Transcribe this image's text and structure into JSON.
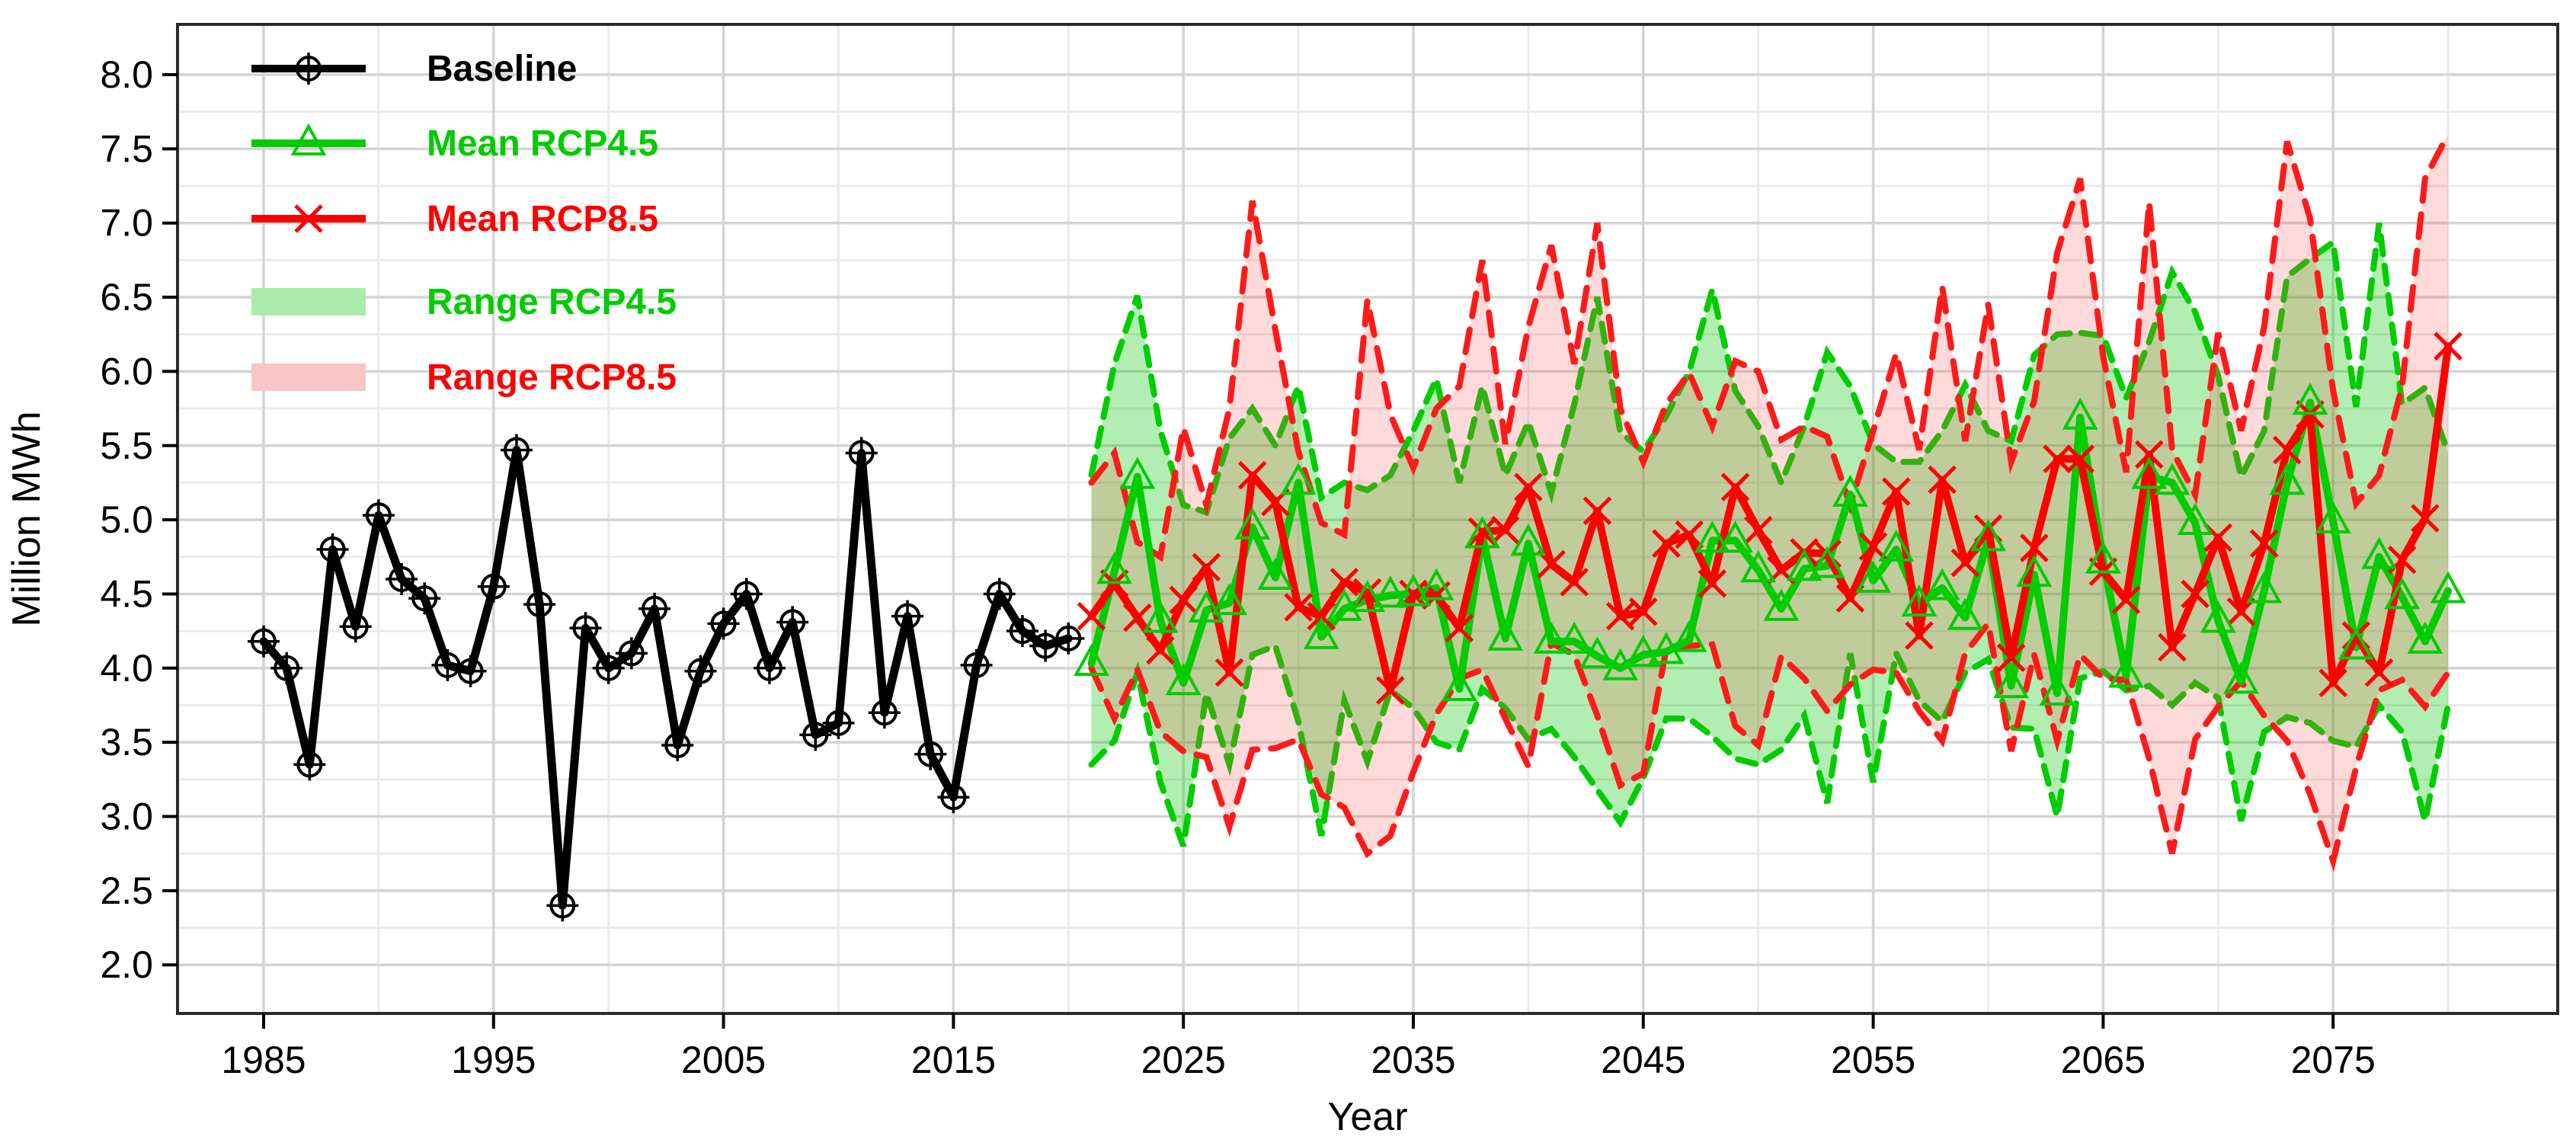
{
  "chart_data": {
    "type": "line",
    "title": "",
    "xlabel": "Year",
    "ylabel": "Million MWh",
    "axes": {
      "y_major_ticks": [
        2.0,
        2.5,
        3.0,
        3.5,
        4.0,
        4.5,
        5.0,
        5.5,
        6.0,
        6.5,
        7.0,
        7.5,
        8.0
      ],
      "y_tick_labels": [
        "2.0",
        "2.5",
        "3.0",
        "3.5",
        "4.0",
        "4.5",
        "5.0",
        "5.5",
        "6.0",
        "6.5",
        "7.0",
        "7.5",
        "8.0"
      ],
      "y_minor_ticks": [
        2.25,
        2.75,
        3.25,
        3.75,
        4.25,
        4.75,
        5.25,
        5.75,
        6.25,
        6.75,
        7.25,
        7.75
      ],
      "x_major_ticks": [
        1985,
        1995,
        2005,
        2015,
        2025,
        2035,
        2045,
        2055,
        2065,
        2075
      ],
      "x_minor_ticks": [
        1990,
        2000,
        2010,
        2020,
        2030,
        2040,
        2050,
        2060,
        2070,
        2080
      ],
      "ylim": [
        1.67,
        8.33
      ],
      "xlim": [
        1981.3,
        2084.8
      ],
      "grid": true
    },
    "legend": {
      "position": "top-left-inside",
      "entries": [
        {
          "label": "Baseline",
          "color": "#000000",
          "marker": "circle-plus",
          "kind": "line"
        },
        {
          "label": "Mean RCP4.5",
          "color": "#00CC00",
          "marker": "triangle",
          "kind": "line"
        },
        {
          "label": "Mean RCP8.5",
          "color": "#FF0000",
          "marker": "x",
          "kind": "line"
        },
        {
          "label": "Range RCP4.5",
          "color": "#ABEBAB",
          "marker": "none",
          "kind": "band"
        },
        {
          "label": "Range RCP8.5",
          "color": "#F8C5C5",
          "marker": "none",
          "kind": "band"
        }
      ]
    },
    "series": [
      {
        "name": "Baseline",
        "color": "#000000",
        "marker": "circle-plus",
        "line_width": 11,
        "start_year": 1985,
        "values": [
          4.18,
          4.0,
          3.35,
          4.8,
          4.28,
          5.03,
          4.6,
          4.47,
          4.02,
          3.98,
          4.55,
          5.47,
          4.43,
          2.4,
          4.27,
          4.0,
          4.1,
          4.4,
          3.48,
          3.98,
          4.3,
          4.5,
          4.0,
          4.31,
          3.55,
          3.63,
          5.45,
          3.7,
          4.35,
          3.42,
          3.13,
          4.02,
          4.5,
          4.25,
          4.15,
          4.2
        ]
      },
      {
        "name": "Mean RCP4.5",
        "color": "#00CC00",
        "marker": "triangle",
        "line_width": 10,
        "start_year": 2021,
        "values": [
          4.03,
          4.65,
          5.29,
          4.32,
          3.9,
          4.39,
          4.44,
          4.95,
          4.61,
          5.25,
          4.21,
          4.4,
          4.46,
          4.49,
          4.5,
          4.54,
          3.86,
          4.89,
          4.2,
          4.84,
          4.18,
          4.18,
          4.08,
          4.0,
          4.09,
          4.11,
          4.19,
          4.86,
          4.86,
          4.66,
          4.4,
          4.67,
          4.69,
          5.17,
          4.59,
          4.8,
          4.43,
          4.54,
          4.34,
          4.87,
          3.88,
          4.63,
          3.83,
          5.69,
          4.72,
          3.95,
          5.29,
          5.25,
          4.98,
          4.32,
          3.91,
          4.52,
          5.25,
          5.79,
          4.99,
          4.14,
          4.75,
          4.48,
          4.18,
          4.52
        ]
      },
      {
        "name": "Mean RCP8.5",
        "color": "#FF0000",
        "marker": "x",
        "line_width": 10,
        "start_year": 2021,
        "values": [
          4.35,
          4.57,
          4.34,
          4.12,
          4.46,
          4.68,
          3.97,
          5.3,
          5.12,
          4.41,
          4.35,
          4.58,
          4.51,
          3.85,
          4.5,
          4.49,
          4.27,
          4.92,
          4.93,
          5.22,
          4.7,
          4.58,
          5.06,
          4.35,
          4.38,
          4.84,
          4.9,
          4.57,
          5.22,
          4.93,
          4.66,
          4.78,
          4.77,
          4.47,
          4.82,
          5.19,
          4.22,
          5.27,
          4.71,
          4.94,
          4.07,
          4.81,
          5.41,
          5.41,
          4.65,
          4.46,
          5.44,
          4.14,
          4.5,
          4.88,
          4.38,
          4.84,
          5.47,
          5.71,
          3.9,
          4.22,
          3.97,
          4.73,
          5.01,
          6.17
        ]
      }
    ],
    "bands": [
      {
        "name": "Range RCP4.5",
        "edge_color": "#00CC00",
        "fill": "rgba(0,200,0,0.30)",
        "dash": "24 15",
        "edge_width": 8,
        "start_year": 2021,
        "upper": [
          5.3,
          6.05,
          6.51,
          5.6,
          5.1,
          5.05,
          5.55,
          5.75,
          5.5,
          5.9,
          5.15,
          5.25,
          5.2,
          5.3,
          5.6,
          5.95,
          5.25,
          5.9,
          5.3,
          5.66,
          5.18,
          5.78,
          6.5,
          5.59,
          5.46,
          5.7,
          6.0,
          6.55,
          5.87,
          5.63,
          5.25,
          5.63,
          6.13,
          5.9,
          5.51,
          5.39,
          5.39,
          5.6,
          5.91,
          5.6,
          5.53,
          6.11,
          6.25,
          6.26,
          6.24,
          5.82,
          6.2,
          6.67,
          6.4,
          5.97,
          5.29,
          5.6,
          6.64,
          6.76,
          6.87,
          5.76,
          7.0,
          5.78,
          5.89,
          5.45
        ],
        "lower": [
          3.35,
          3.51,
          3.97,
          3.23,
          2.8,
          3.83,
          3.35,
          4.09,
          4.15,
          3.64,
          2.87,
          3.78,
          3.37,
          3.85,
          3.73,
          3.5,
          3.45,
          3.86,
          3.73,
          3.52,
          3.59,
          3.4,
          3.18,
          2.96,
          3.26,
          3.66,
          3.66,
          3.54,
          3.39,
          3.35,
          3.45,
          3.68,
          3.09,
          4.1,
          3.23,
          4.1,
          3.78,
          3.64,
          3.97,
          4.06,
          3.6,
          3.59,
          3.0,
          3.93,
          3.98,
          3.85,
          3.88,
          3.75,
          3.9,
          3.8,
          2.97,
          3.57,
          3.67,
          3.63,
          3.51,
          3.47,
          3.75,
          3.57,
          2.97,
          3.75
        ]
      },
      {
        "name": "Range RCP8.5",
        "edge_color": "#FF1A1A",
        "fill": "rgba(255,70,70,0.20)",
        "dash": "30 18",
        "edge_width": 8,
        "start_year": 2021,
        "upper": [
          5.25,
          5.45,
          4.85,
          4.75,
          5.62,
          5.1,
          5.75,
          7.15,
          6.28,
          5.46,
          4.98,
          4.9,
          6.48,
          5.71,
          5.35,
          5.75,
          5.9,
          6.75,
          5.51,
          6.3,
          6.85,
          6.05,
          7.0,
          5.75,
          5.39,
          5.78,
          5.99,
          5.63,
          6.07,
          6.0,
          5.54,
          5.63,
          5.56,
          5.1,
          5.6,
          6.12,
          5.47,
          6.57,
          5.53,
          6.45,
          5.39,
          5.8,
          6.8,
          7.3,
          6.1,
          5.32,
          7.14,
          5.47,
          5.17,
          6.26,
          5.6,
          6.3,
          7.55,
          7.03,
          5.87,
          5.11,
          5.3,
          5.9,
          7.3,
          7.6
        ],
        "lower": [
          4.0,
          3.66,
          3.99,
          3.57,
          3.44,
          3.4,
          2.93,
          3.45,
          3.46,
          3.52,
          3.15,
          3.06,
          2.75,
          2.87,
          3.3,
          3.69,
          3.93,
          3.99,
          3.66,
          3.34,
          4.17,
          4.09,
          3.68,
          3.21,
          3.29,
          4.13,
          4.15,
          4.16,
          3.61,
          3.48,
          4.08,
          3.93,
          3.71,
          3.89,
          3.99,
          3.97,
          3.71,
          3.51,
          4.1,
          4.3,
          3.44,
          4.09,
          3.51,
          4.09,
          3.93,
          3.92,
          3.39,
          2.75,
          3.52,
          3.74,
          3.91,
          3.68,
          3.51,
          3.15,
          2.7,
          3.33,
          3.85,
          3.92,
          3.74,
          3.97
        ]
      }
    ]
  }
}
